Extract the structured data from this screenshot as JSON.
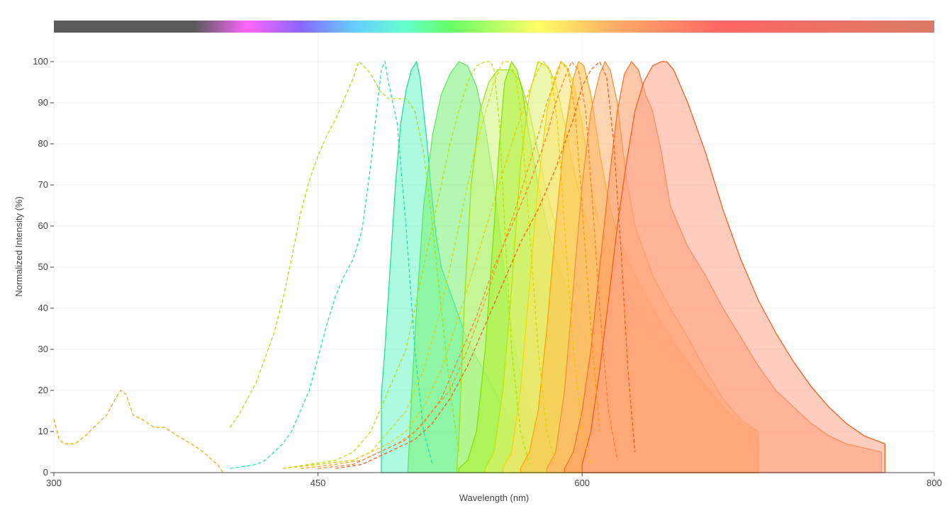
{
  "chart_data": {
    "type": "area",
    "title": "",
    "xlabel": "Wavelength (nm)",
    "ylabel": "Normalized Intensity (%)",
    "xlim": [
      300,
      800
    ],
    "ylim": [
      0,
      100
    ],
    "x_ticks": [
      300,
      450,
      600,
      800
    ],
    "y_ticks": [
      0,
      10,
      20,
      30,
      40,
      50,
      60,
      70,
      80,
      90,
      100
    ],
    "x_tick_labels": [
      "300",
      "450",
      "600",
      "800"
    ],
    "y_tick_labels": [
      "0",
      "10",
      "20",
      "30",
      "40",
      "50",
      "60",
      "70",
      "80",
      "90",
      "100"
    ],
    "grid": true,
    "legend": "none",
    "spectrum_bar": {
      "stops": [
        {
          "nm": 300,
          "color": "#5a5a5a"
        },
        {
          "nm": 380,
          "color": "#5a5a5a"
        },
        {
          "nm": 410,
          "color": "#ff66ff"
        },
        {
          "nm": 440,
          "color": "#8866ff"
        },
        {
          "nm": 470,
          "color": "#66ccff"
        },
        {
          "nm": 500,
          "color": "#66ffcc"
        },
        {
          "nm": 525,
          "color": "#66ff66"
        },
        {
          "nm": 575,
          "color": "#ffff66"
        },
        {
          "nm": 620,
          "color": "#ffaa66"
        },
        {
          "nm": 680,
          "color": "#ff6666"
        },
        {
          "nm": 800,
          "color": "#d97a66"
        }
      ]
    },
    "excitation_series": [
      {
        "color": "#f5a300",
        "x": [
          300,
          303,
          306,
          312,
          318,
          325,
          330,
          335,
          338,
          341,
          345,
          350,
          357,
          363,
          370,
          378,
          385,
          390,
          393,
          396
        ],
        "y": [
          13,
          8,
          7,
          7,
          9,
          12,
          14,
          18,
          20,
          19,
          14,
          13,
          11,
          11,
          9,
          7,
          5,
          3,
          2,
          0
        ]
      },
      {
        "color": "#a6e000",
        "x": [
          400,
          405,
          410,
          415,
          420,
          425,
          430,
          435,
          440,
          445,
          450,
          455,
          460,
          465,
          470,
          473,
          476,
          480,
          485,
          490,
          495,
          500,
          505,
          510,
          515,
          520,
          525,
          530
        ],
        "y": [
          11,
          14,
          18,
          22,
          28,
          34,
          42,
          52,
          63,
          71,
          77,
          82,
          86,
          91,
          96,
          100,
          99,
          97,
          93,
          91,
          91,
          91,
          88,
          78,
          60,
          40,
          20,
          5
        ]
      },
      {
        "color": "#17e0b0",
        "x": [
          400,
          415,
          420,
          425,
          430,
          435,
          440,
          445,
          450,
          455,
          460,
          465,
          470,
          475,
          480,
          483,
          486,
          488,
          490,
          495,
          500,
          505,
          510,
          515
        ],
        "y": [
          1,
          2,
          3,
          5,
          7,
          10,
          15,
          20,
          28,
          36,
          43,
          48,
          52,
          59,
          75,
          87,
          98,
          100,
          95,
          85,
          60,
          30,
          10,
          2
        ]
      },
      {
        "color": "#b4e000",
        "x": [
          430,
          445,
          460,
          470,
          480,
          490,
          500,
          505,
          510,
          515,
          520,
          525,
          530,
          535,
          540,
          545,
          548,
          550,
          553,
          556,
          560,
          565,
          570
        ],
        "y": [
          1,
          2,
          3,
          5,
          10,
          20,
          30,
          40,
          50,
          60,
          70,
          80,
          88,
          95,
          99,
          100,
          100,
          98,
          85,
          60,
          30,
          10,
          2
        ]
      },
      {
        "color": "#d9d900",
        "x": [
          430,
          450,
          470,
          480,
          490,
          500,
          510,
          520,
          530,
          540,
          550,
          555,
          558,
          562,
          565,
          570,
          575,
          580,
          585
        ],
        "y": [
          1,
          2,
          3,
          5,
          10,
          15,
          25,
          40,
          60,
          80,
          95,
          100,
          100,
          97,
          88,
          60,
          30,
          10,
          2
        ]
      },
      {
        "color": "#f0c800",
        "x": [
          430,
          450,
          470,
          480,
          490,
          500,
          510,
          520,
          530,
          540,
          550,
          560,
          570,
          575,
          578,
          582,
          586,
          590,
          595,
          600,
          605
        ],
        "y": [
          1,
          2,
          3,
          5,
          7,
          10,
          16,
          25,
          38,
          52,
          66,
          80,
          93,
          98,
          100,
          98,
          85,
          60,
          30,
          10,
          2
        ]
      },
      {
        "color": "#ff9900",
        "x": [
          440,
          460,
          475,
          485,
          495,
          505,
          515,
          525,
          535,
          545,
          555,
          565,
          575,
          580,
          585,
          588,
          592,
          596,
          600,
          605,
          610
        ],
        "y": [
          1,
          2,
          3,
          5,
          7,
          10,
          15,
          20,
          30,
          42,
          55,
          68,
          82,
          90,
          96,
          100,
          98,
          88,
          65,
          35,
          10
        ]
      },
      {
        "color": "#ff7733",
        "x": [
          450,
          470,
          480,
          490,
          500,
          510,
          520,
          530,
          540,
          550,
          560,
          570,
          580,
          585,
          590,
          594,
          598,
          602,
          606,
          610,
          615,
          620
        ],
        "y": [
          1,
          2,
          4,
          6,
          8,
          12,
          18,
          28,
          38,
          50,
          60,
          70,
          82,
          90,
          96,
          100,
          98,
          88,
          65,
          40,
          15,
          3
        ]
      },
      {
        "color": "#ff5511",
        "x": [
          460,
          475,
          485,
          495,
          505,
          515,
          525,
          535,
          545,
          555,
          565,
          575,
          585,
          595,
          600,
          605,
          610,
          614,
          618,
          622,
          626,
          630
        ],
        "y": [
          1,
          2,
          4,
          6,
          8,
          12,
          18,
          26,
          36,
          46,
          56,
          64,
          74,
          86,
          94,
          98,
          100,
          96,
          80,
          55,
          25,
          5
        ]
      }
    ],
    "emission_series": [
      {
        "color": "#13e08f",
        "fill": "#6cf5c8",
        "x": [
          486,
          488,
          491,
          494,
          497,
          500,
          503,
          506,
          508,
          510,
          512,
          514,
          517,
          520,
          525,
          530,
          535,
          540,
          545,
          550,
          555,
          560,
          565,
          570,
          575,
          580,
          585,
          590,
          595,
          600
        ],
        "y": [
          19,
          30,
          50,
          70,
          85,
          93,
          98,
          100,
          96,
          88,
          80,
          70,
          58,
          50,
          44,
          38,
          32,
          28,
          24,
          20,
          16,
          13,
          10,
          8,
          6,
          5,
          3,
          2,
          1,
          0
        ]
      },
      {
        "color": "#5ce65c",
        "fill": "#74f074",
        "x": [
          501,
          503,
          506,
          510,
          515,
          520,
          525,
          530,
          535,
          540,
          545,
          550,
          555,
          558,
          562,
          565,
          570,
          575,
          580,
          585,
          590,
          595,
          600
        ],
        "y": [
          0,
          18,
          40,
          65,
          82,
          92,
          97,
          100,
          99,
          94,
          84,
          70,
          52,
          40,
          30,
          24,
          16,
          10,
          7,
          5,
          3,
          2,
          1
        ]
      },
      {
        "color": "#a0e000",
        "fill": "#d2f57d",
        "x": [
          529,
          530,
          533,
          537,
          542,
          547,
          552,
          560,
          565,
          570,
          575,
          580,
          585,
          590,
          595,
          600,
          610,
          620,
          630,
          640,
          650,
          660,
          670,
          680,
          690,
          700
        ],
        "y": [
          2,
          8,
          40,
          70,
          88,
          95,
          98,
          98,
          95,
          88,
          78,
          68,
          60,
          53,
          48,
          44,
          38,
          32,
          27,
          22,
          18,
          14,
          11,
          8,
          5,
          3
        ]
      },
      {
        "color": "#7fe000",
        "fill": "#a8f030",
        "x": [
          530,
          535,
          540,
          545,
          550,
          553,
          556,
          560,
          563,
          566,
          570,
          575,
          580,
          585,
          590,
          595,
          600,
          605,
          610,
          620,
          630,
          640,
          650,
          660,
          670,
          680,
          690,
          700
        ],
        "y": [
          1,
          3,
          10,
          30,
          60,
          80,
          95,
          100,
          98,
          93,
          82,
          70,
          60,
          52,
          46,
          40,
          35,
          31,
          27,
          22,
          18,
          14,
          11,
          9,
          7,
          5,
          3,
          2
        ]
      },
      {
        "color": "#c4e000",
        "fill": "#e0f070",
        "x": [
          545,
          550,
          555,
          560,
          565,
          570,
          575,
          580,
          585,
          590,
          595,
          600,
          605,
          610,
          620,
          630,
          640,
          650,
          660,
          670,
          680,
          690,
          700
        ],
        "y": [
          1,
          5,
          20,
          45,
          75,
          92,
          100,
          99,
          95,
          85,
          74,
          65,
          58,
          52,
          44,
          38,
          32,
          28,
          24,
          20,
          16,
          12,
          8
        ]
      },
      {
        "color": "#f5d800",
        "fill": "#fce26e",
        "x": [
          555,
          560,
          565,
          570,
          575,
          580,
          585,
          588,
          591,
          595,
          600,
          605,
          610,
          620,
          630,
          640,
          650,
          660,
          670,
          680,
          690,
          700
        ],
        "y": [
          1,
          5,
          20,
          45,
          70,
          88,
          97,
          100,
          99,
          95,
          85,
          70,
          60,
          50,
          43,
          36,
          30,
          25,
          20,
          16,
          12,
          8
        ]
      },
      {
        "color": "#ffa000",
        "fill": "#ffbe4a",
        "x": [
          565,
          570,
          575,
          580,
          585,
          590,
          595,
          598,
          601,
          605,
          610,
          615,
          620,
          630,
          640,
          650,
          660,
          670,
          680,
          690,
          700
        ],
        "y": [
          1,
          5,
          15,
          35,
          60,
          82,
          96,
          100,
          99,
          92,
          78,
          66,
          58,
          48,
          40,
          33,
          27,
          21,
          16,
          12,
          10
        ]
      },
      {
        "color": "#ff8a33",
        "fill": "#ffb070",
        "x": [
          580,
          585,
          590,
          595,
          600,
          605,
          610,
          613,
          616,
          620,
          625,
          630,
          640,
          650,
          660,
          670,
          680,
          690,
          700
        ],
        "y": [
          1,
          5,
          20,
          45,
          70,
          88,
          97,
          100,
          98,
          90,
          72,
          60,
          48,
          40,
          33,
          25,
          18,
          13,
          10
        ]
      },
      {
        "color": "#ff6b22",
        "fill": "#ff9a62",
        "x": [
          590,
          595,
          600,
          605,
          610,
          615,
          620,
          624,
          628,
          632,
          636,
          640,
          645,
          650,
          660,
          670,
          680,
          690,
          700,
          710,
          720,
          730,
          740,
          750,
          760,
          770
        ],
        "y": [
          1,
          5,
          15,
          30,
          50,
          70,
          88,
          97,
          100,
          98,
          92,
          88,
          78,
          65,
          55,
          48,
          40,
          33,
          26,
          20,
          16,
          12,
          9,
          7,
          6,
          5
        ]
      },
      {
        "color": "#ff5511",
        "fill": "#ffa488",
        "x": [
          600,
          605,
          610,
          615,
          620,
          625,
          630,
          635,
          640,
          645,
          648,
          652,
          656,
          660,
          670,
          680,
          690,
          700,
          710,
          720,
          730,
          740,
          750,
          760,
          772
        ],
        "y": [
          2,
          10,
          25,
          42,
          60,
          75,
          88,
          95,
          99,
          100,
          100,
          98,
          94,
          90,
          78,
          64,
          52,
          42,
          34,
          27,
          21,
          16,
          12,
          9,
          7
        ]
      }
    ]
  }
}
